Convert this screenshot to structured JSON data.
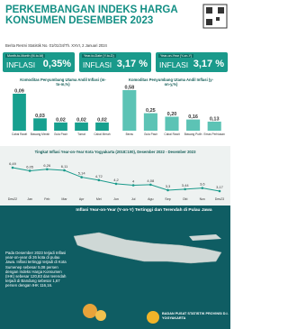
{
  "header": {
    "title": "PERKEMBANGAN INDEKS HARGA KONSUMEN DESEMBER 2023",
    "subtitle": "Berita Resmi Statistik No. 01/01/34/Th. XXVI, 2 Januari 2024"
  },
  "indicators": [
    {
      "label": "Month-to-Month (M-to-M)",
      "name": "INFLASI",
      "value": "0,35%"
    },
    {
      "label": "Year-to-Date (Y-to-D)",
      "name": "INFLASI",
      "value": "3,17 %"
    },
    {
      "label": "Year-on-Year (Y-on-Y)",
      "name": "INFLASI",
      "value": "3,17 %"
    }
  ],
  "chart_data": [
    {
      "type": "bar",
      "title": "Komoditas Penyumbang Utama Andil Inflasi (m-to-m,%)",
      "categories": [
        "Cabai Rawit",
        "Bawang Merah",
        "Gula Pasir",
        "Tomat",
        "Cabai Merah"
      ],
      "values": [
        0.09,
        0.03,
        0.02,
        0.02,
        0.02
      ],
      "value_labels": [
        "0,09",
        "0,03",
        "0,02",
        "0,02",
        "0,02"
      ],
      "color": "#17a08f"
    },
    {
      "type": "bar",
      "title": "Komoditas Penyumbang Utama Andil Inflasi (y-on-y,%)",
      "categories": [
        "Beras",
        "Gula Pasir",
        "Cabai Rawit",
        "Bawang Putih",
        "Emas Perhiasan"
      ],
      "values": [
        0.58,
        0.25,
        0.2,
        0.16,
        0.13
      ],
      "value_labels": [
        "0,58",
        "0,25",
        "0,20",
        "0,16",
        "0,13"
      ],
      "color": "#5cc3b5"
    },
    {
      "type": "line",
      "title": "Tingkat Inflasi Year-on-Year Kota Yogyakarta (2018=100), Desember 2022 - Desember 2023",
      "categories": [
        "Des22",
        "Jan",
        "Feb",
        "Mar",
        "Apr",
        "Mei",
        "Jun",
        "Jul",
        "Agu",
        "Sep",
        "Okt",
        "Nov",
        "Des23"
      ],
      "values": [
        6.49,
        6.05,
        6.26,
        6.11,
        5.14,
        4.72,
        4.2,
        4,
        4.08,
        3.3,
        3.44,
        3.6,
        3.17
      ],
      "value_labels": [
        "6,49",
        "6,05",
        "6,26",
        "6,11",
        "5,14",
        "4,72",
        "4,2",
        "4",
        "4,08",
        "3,3",
        "3,44",
        "3,6",
        "3,17"
      ],
      "color": "#1a9a8b"
    }
  ],
  "map": {
    "title": "Inflasi Year-on-Year (Y-on-Y) Tertinggi dan Terendah di Pulau Jawa",
    "text": "Pada Desember 2023 terjadi Inflasi year-on-year di 26 kota di pulau Jawa. Inflasi tertinggi terjadi di Kota Sumenep sebesar 5,08 persen dengan Indeks Harga Konsumen (IHK) sebesar 120,83 dan terendah terjadi di Bandung sebesar 1,67 persen dengan IHK 116,16."
  },
  "footer": {
    "org": "BADAN PUSAT STATISTIK PROVINSI D.I. YOGYAKARTA"
  }
}
